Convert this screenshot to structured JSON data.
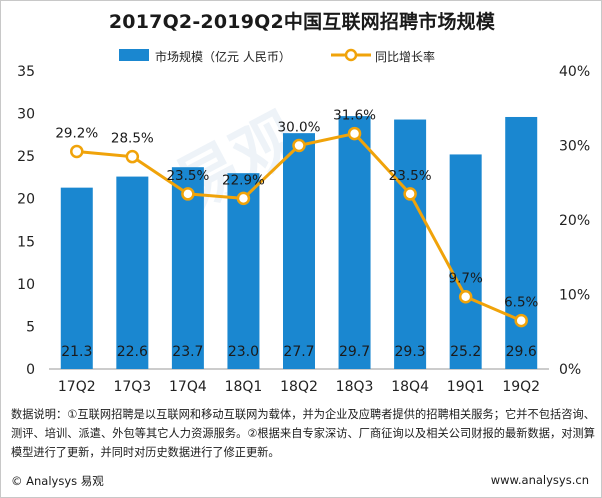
{
  "chart_data": {
    "type": "bar+line",
    "title": "2017Q2-2019Q2中国互联网招聘市场规模",
    "categories": [
      "17Q2",
      "17Q3",
      "17Q4",
      "18Q1",
      "18Q2",
      "18Q3",
      "18Q4",
      "19Q1",
      "19Q2"
    ],
    "series": [
      {
        "name": "市场规模（亿元 人民币）",
        "type": "bar",
        "axis": "left",
        "values": [
          21.3,
          22.6,
          23.7,
          23.0,
          27.7,
          29.7,
          29.3,
          25.2,
          29.6
        ],
        "labels": [
          "21.3",
          "22.6",
          "23.7",
          "23.0",
          "27.7",
          "29.7",
          "29.3",
          "25.2",
          "29.6"
        ],
        "color": "#1a87d0"
      },
      {
        "name": "同比增长率",
        "type": "line",
        "axis": "right",
        "values": [
          29.2,
          28.5,
          23.5,
          22.9,
          30.0,
          31.6,
          23.5,
          9.7,
          6.5
        ],
        "labels": [
          "29.2%",
          "28.5%",
          "23.5%",
          "22.9%",
          "30.0%",
          "31.6%",
          "23.5%",
          "9.7%",
          "6.5%"
        ],
        "color": "#f0a30a"
      }
    ],
    "y_left": {
      "ylim": [
        0,
        35
      ],
      "ticks": [
        "0",
        "5",
        "10",
        "15",
        "20",
        "25",
        "30",
        "35"
      ]
    },
    "y_right": {
      "ylim": [
        0,
        40
      ],
      "ticks": [
        "0%",
        "10%",
        "20%",
        "30%",
        "40%"
      ]
    },
    "legend_position": "top"
  },
  "watermark": "易观",
  "note": "数据说明：①互联网招聘是以互联网和移动互联网为载体，并为企业及应聘者提供的招聘相关服务；它并不包括咨询、测评、培训、派遣、外包等其它人力资源服务。②根据来自专家深访、厂商征询以及相关公司财报的最新数据，对测算模型进行了更新，并同时对历史数据进行了修正更新。",
  "footer": {
    "brand": "© Analysys 易观",
    "url": "www.analysys.cn"
  }
}
